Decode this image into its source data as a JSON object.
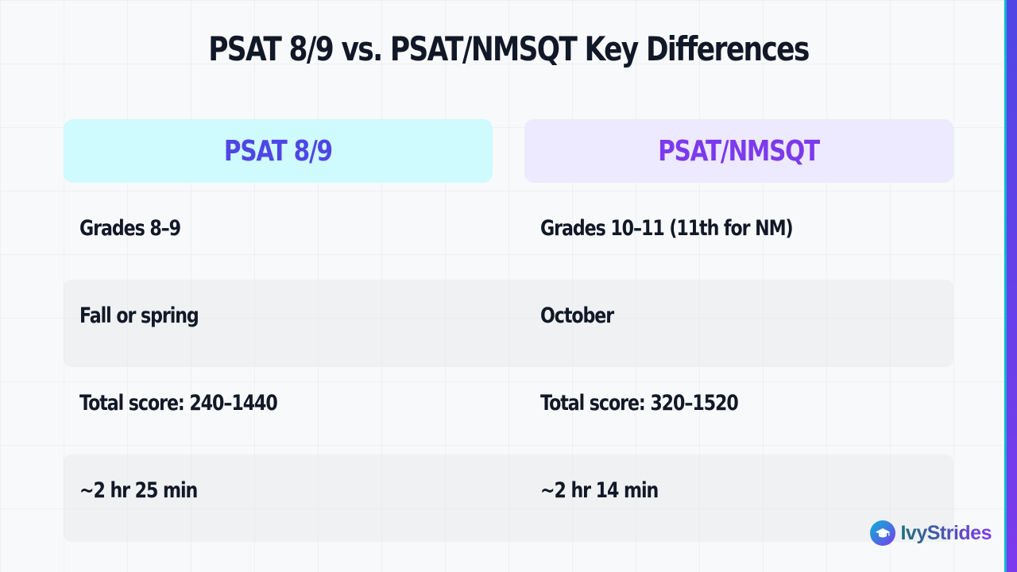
{
  "title": "PSAT 8/9 vs. PSAT/NMSQT Key Differences",
  "columns": {
    "left": {
      "header": "PSAT 8/9"
    },
    "right": {
      "header": "PSAT/NMSQT"
    }
  },
  "rows": [
    {
      "left": "Grades 8–9",
      "right": "Grades 10–11 (11th for NM)"
    },
    {
      "left": "Fall or spring",
      "right": "October"
    },
    {
      "left": "Total score: 240–1440",
      "right": "Total score: 320–1520"
    },
    {
      "left": "~2 hr 25 min",
      "right": "~2 hr 14 min"
    }
  ],
  "brand": {
    "name": "IvyStrides",
    "icon": "graduation-cap-icon"
  },
  "colors": {
    "left_header_bg": "#cffafe",
    "left_header_text": "#4f46e5",
    "right_header_bg": "#ede9fe",
    "right_header_text": "#7c3aed",
    "accent_bar": "#4f46e5"
  }
}
